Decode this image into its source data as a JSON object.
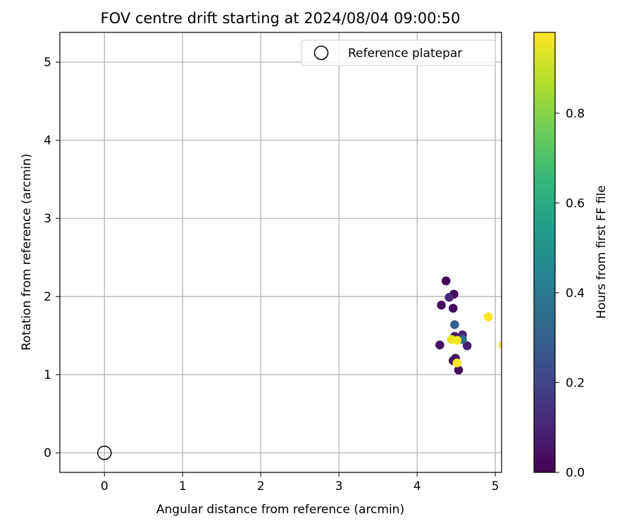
{
  "chart_data": {
    "type": "scatter",
    "title": "FOV centre drift starting at 2024/08/04 09:00:50",
    "xlabel": "Angular distance from reference (arcmin)",
    "ylabel": "Rotation from reference (arcmin)",
    "xlim": [
      -0.57,
      5.08
    ],
    "ylim": [
      -0.25,
      5.38
    ],
    "xticks": [
      0,
      1,
      2,
      3,
      4,
      5
    ],
    "yticks": [
      0,
      1,
      2,
      3,
      4,
      5
    ],
    "grid": true,
    "legend": {
      "location": "upper right",
      "entries": [
        "Reference platepar"
      ]
    },
    "reference_point": {
      "x": 0,
      "y": 0,
      "label": "Reference platepar",
      "marker": "open-circle"
    },
    "colorbar": {
      "label": "Hours from first FF file",
      "colormap": "viridis",
      "range": [
        0.0,
        0.98
      ],
      "ticks": [
        0.0,
        0.2,
        0.4,
        0.6,
        0.8
      ],
      "colors": [
        "#440154",
        "#482878",
        "#3e4989",
        "#31688e",
        "#26828e",
        "#1f9e89",
        "#35b779",
        "#6ece58",
        "#b5de2b",
        "#fde725"
      ]
    },
    "points": [
      {
        "x": 4.37,
        "y": 2.2,
        "hours": 0.0
      },
      {
        "x": 4.47,
        "y": 2.03,
        "hours": 0.02
      },
      {
        "x": 4.31,
        "y": 1.89,
        "hours": 0.03
      },
      {
        "x": 4.46,
        "y": 1.85,
        "hours": 0.04
      },
      {
        "x": 4.41,
        "y": 1.99,
        "hours": 0.12
      },
      {
        "x": 4.29,
        "y": 1.38,
        "hours": 0.05
      },
      {
        "x": 4.64,
        "y": 1.37,
        "hours": 0.08
      },
      {
        "x": 4.58,
        "y": 1.51,
        "hours": 0.1
      },
      {
        "x": 4.48,
        "y": 1.49,
        "hours": 0.07
      },
      {
        "x": 4.46,
        "y": 1.18,
        "hours": 0.06
      },
      {
        "x": 4.49,
        "y": 1.21,
        "hours": 0.04
      },
      {
        "x": 4.53,
        "y": 1.06,
        "hours": 0.03
      },
      {
        "x": 4.48,
        "y": 1.64,
        "hours": 0.3
      },
      {
        "x": 4.58,
        "y": 1.45,
        "hours": 0.35
      },
      {
        "x": 4.44,
        "y": 1.45,
        "hours": 0.95
      },
      {
        "x": 4.51,
        "y": 1.44,
        "hours": 0.97
      },
      {
        "x": 4.51,
        "y": 1.15,
        "hours": 0.98
      },
      {
        "x": 4.91,
        "y": 1.74,
        "hours": 0.98
      },
      {
        "x": 5.1,
        "y": 1.38,
        "hours": 0.98
      }
    ]
  }
}
